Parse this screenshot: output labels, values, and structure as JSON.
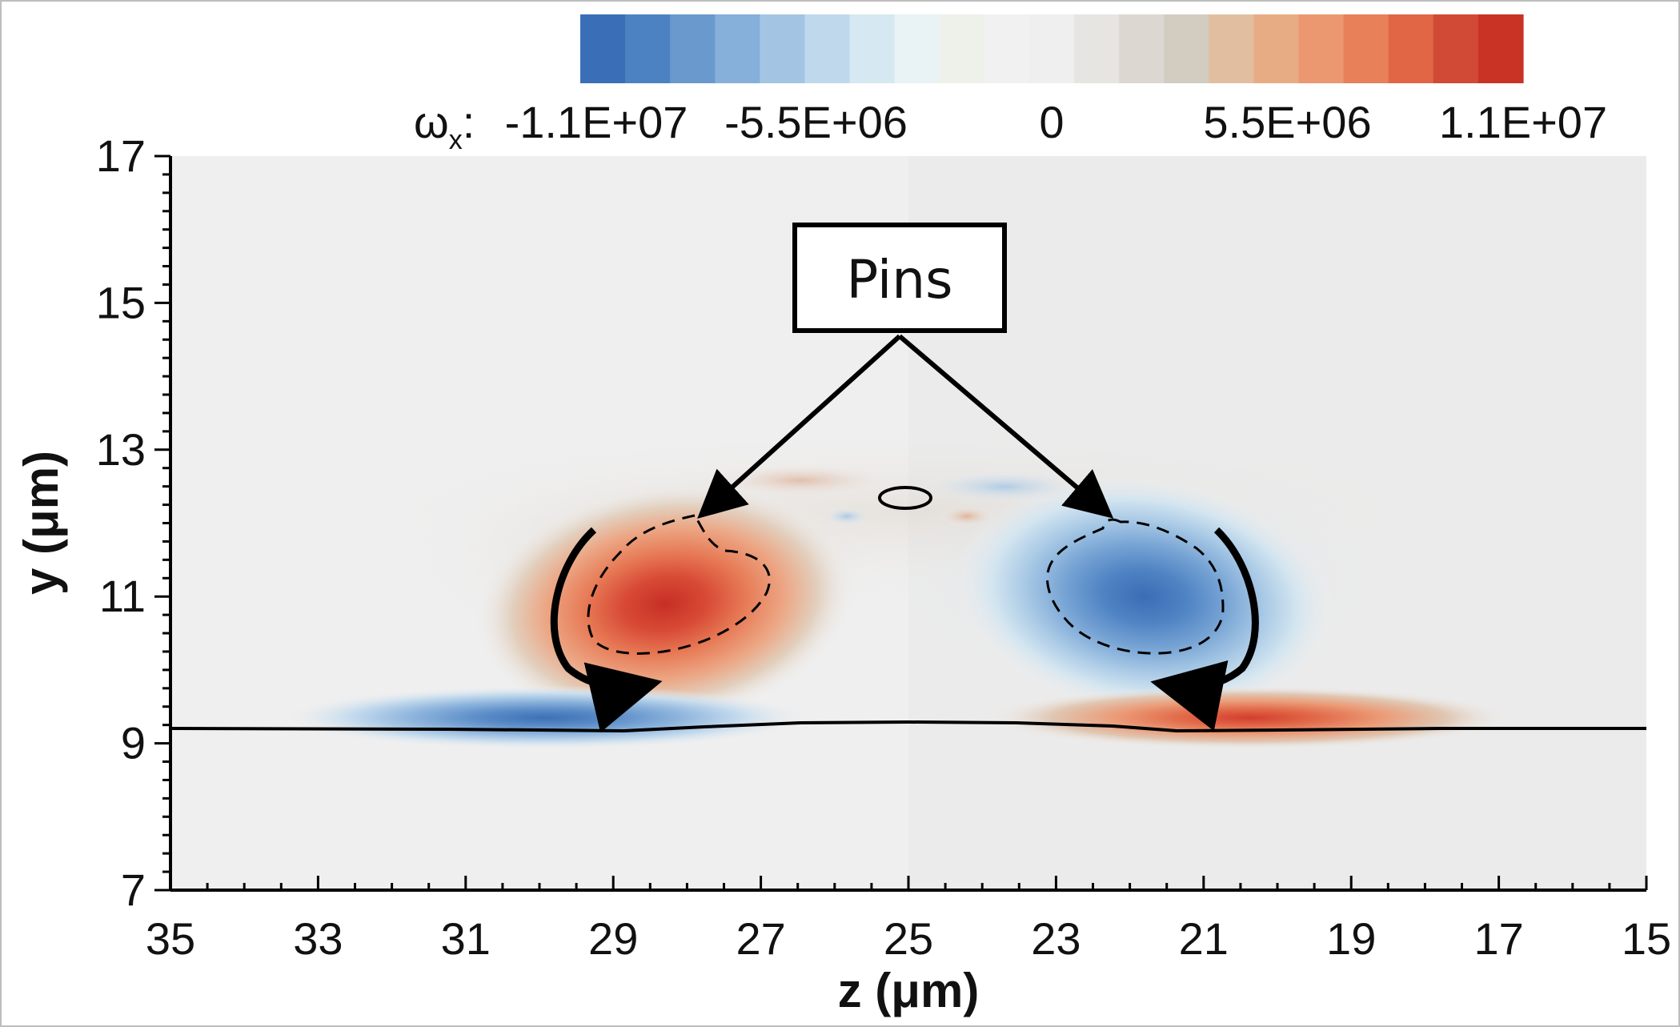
{
  "chart_data": {
    "type": "heatmap",
    "title": "",
    "xlabel": "z (μm)",
    "ylabel": "y (μm)",
    "xlim": [
      35,
      15
    ],
    "ylim": [
      7,
      17
    ],
    "x_ticks": [
      "35",
      "33",
      "31",
      "29",
      "27",
      "25",
      "23",
      "21",
      "19",
      "17",
      "15"
    ],
    "y_ticks": [
      "7",
      "9",
      "11",
      "13",
      "15",
      "17"
    ],
    "colorbar": {
      "variable": "ω",
      "subscript": "x",
      "suffix": ":",
      "range": [
        -11000000,
        11000000
      ],
      "tick_labels": [
        "-1.1E+07",
        "-5.5E+06",
        "0",
        "5.5E+06",
        "1.1E+07"
      ],
      "tick_values": [
        -11000000,
        -5500000,
        0,
        5500000,
        11000000
      ],
      "colors": [
        "#3a6fb7",
        "#4d82c2",
        "#6a99cd",
        "#86afd9",
        "#a3c5e3",
        "#bfd8ec",
        "#d6e8f2",
        "#e9f2f5",
        "#eef0ea",
        "#f1f1f1",
        "#efefef",
        "#e6e5e2",
        "#dcd8d1",
        "#d2ccc1",
        "#e2bea0",
        "#e8ac85",
        "#eb9870",
        "#e8805a",
        "#e06646",
        "#d04a35",
        "#c83326"
      ]
    },
    "annotation": {
      "label": "Pins"
    },
    "vortices": [
      {
        "sign": "positive",
        "z_center": 28.3,
        "y_center": 10.9,
        "peak": 11000000
      },
      {
        "sign": "negative",
        "z_center": 21.8,
        "y_center": 11.0,
        "peak": -11000000
      },
      {
        "sign": "negative",
        "z_center": 29.7,
        "y_center": 9.35,
        "peak": -9500000
      },
      {
        "sign": "positive",
        "z_center": 20.6,
        "y_center": 9.35,
        "peak": 9500000
      }
    ],
    "wall_y": 9.25,
    "colors": {
      "background": "#efefef",
      "background_right": "#ebebeb",
      "positive": "#d63a2b",
      "negative": "#3a70b8"
    }
  }
}
